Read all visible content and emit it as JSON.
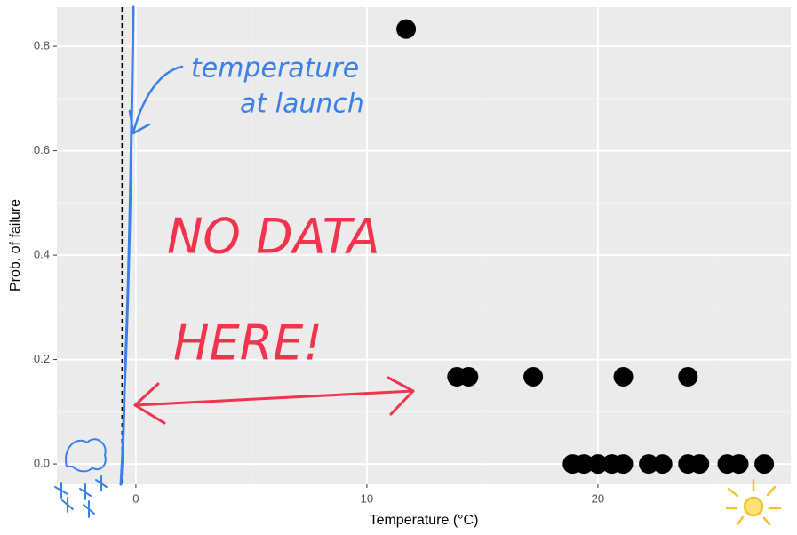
{
  "chart_data": {
    "type": "scatter",
    "x_label": "Temperature (°C)",
    "y_label": "Prob. of failure",
    "x": [
      11.7,
      13.9,
      14.4,
      17.2,
      21.1,
      23.9,
      18.9,
      19.4,
      20.0,
      20.6,
      21.1,
      22.2,
      22.8,
      23.9,
      24.4,
      25.6,
      26.1,
      27.2
    ],
    "values": [
      0.833,
      0.167,
      0.167,
      0.167,
      0.167,
      0.167,
      0,
      0,
      0,
      0,
      0,
      0,
      0,
      0,
      0,
      0,
      0,
      0
    ],
    "color": "#000000",
    "xlim": [
      -3.42,
      28.35
    ],
    "ylim": [
      -0.039,
      0.875
    ],
    "xticks": [
      0,
      10,
      20
    ],
    "yticks": [
      {
        "value": 0,
        "label": "0.0"
      },
      {
        "value": 0.2,
        "label": "0.2"
      },
      {
        "value": 0.4,
        "label": "0.4"
      },
      {
        "value": 0.6,
        "label": "0.6"
      },
      {
        "value": 0.8,
        "label": "0.8"
      }
    ],
    "x_minor_ticks": [
      5,
      15,
      25
    ],
    "y_minor_ticks": [
      0.1,
      0.3,
      0.5,
      0.7
    ],
    "grid": true,
    "launch_temperature": -0.6,
    "annotations": [
      {
        "text": "temperature",
        "color": "#3b7fe8"
      },
      {
        "text": "at launch",
        "color": "#3b7fe8"
      },
      {
        "text": "NO DATA",
        "color": "#f2334d"
      },
      {
        "text": "HERE!",
        "color": "#f2334d"
      }
    ]
  }
}
